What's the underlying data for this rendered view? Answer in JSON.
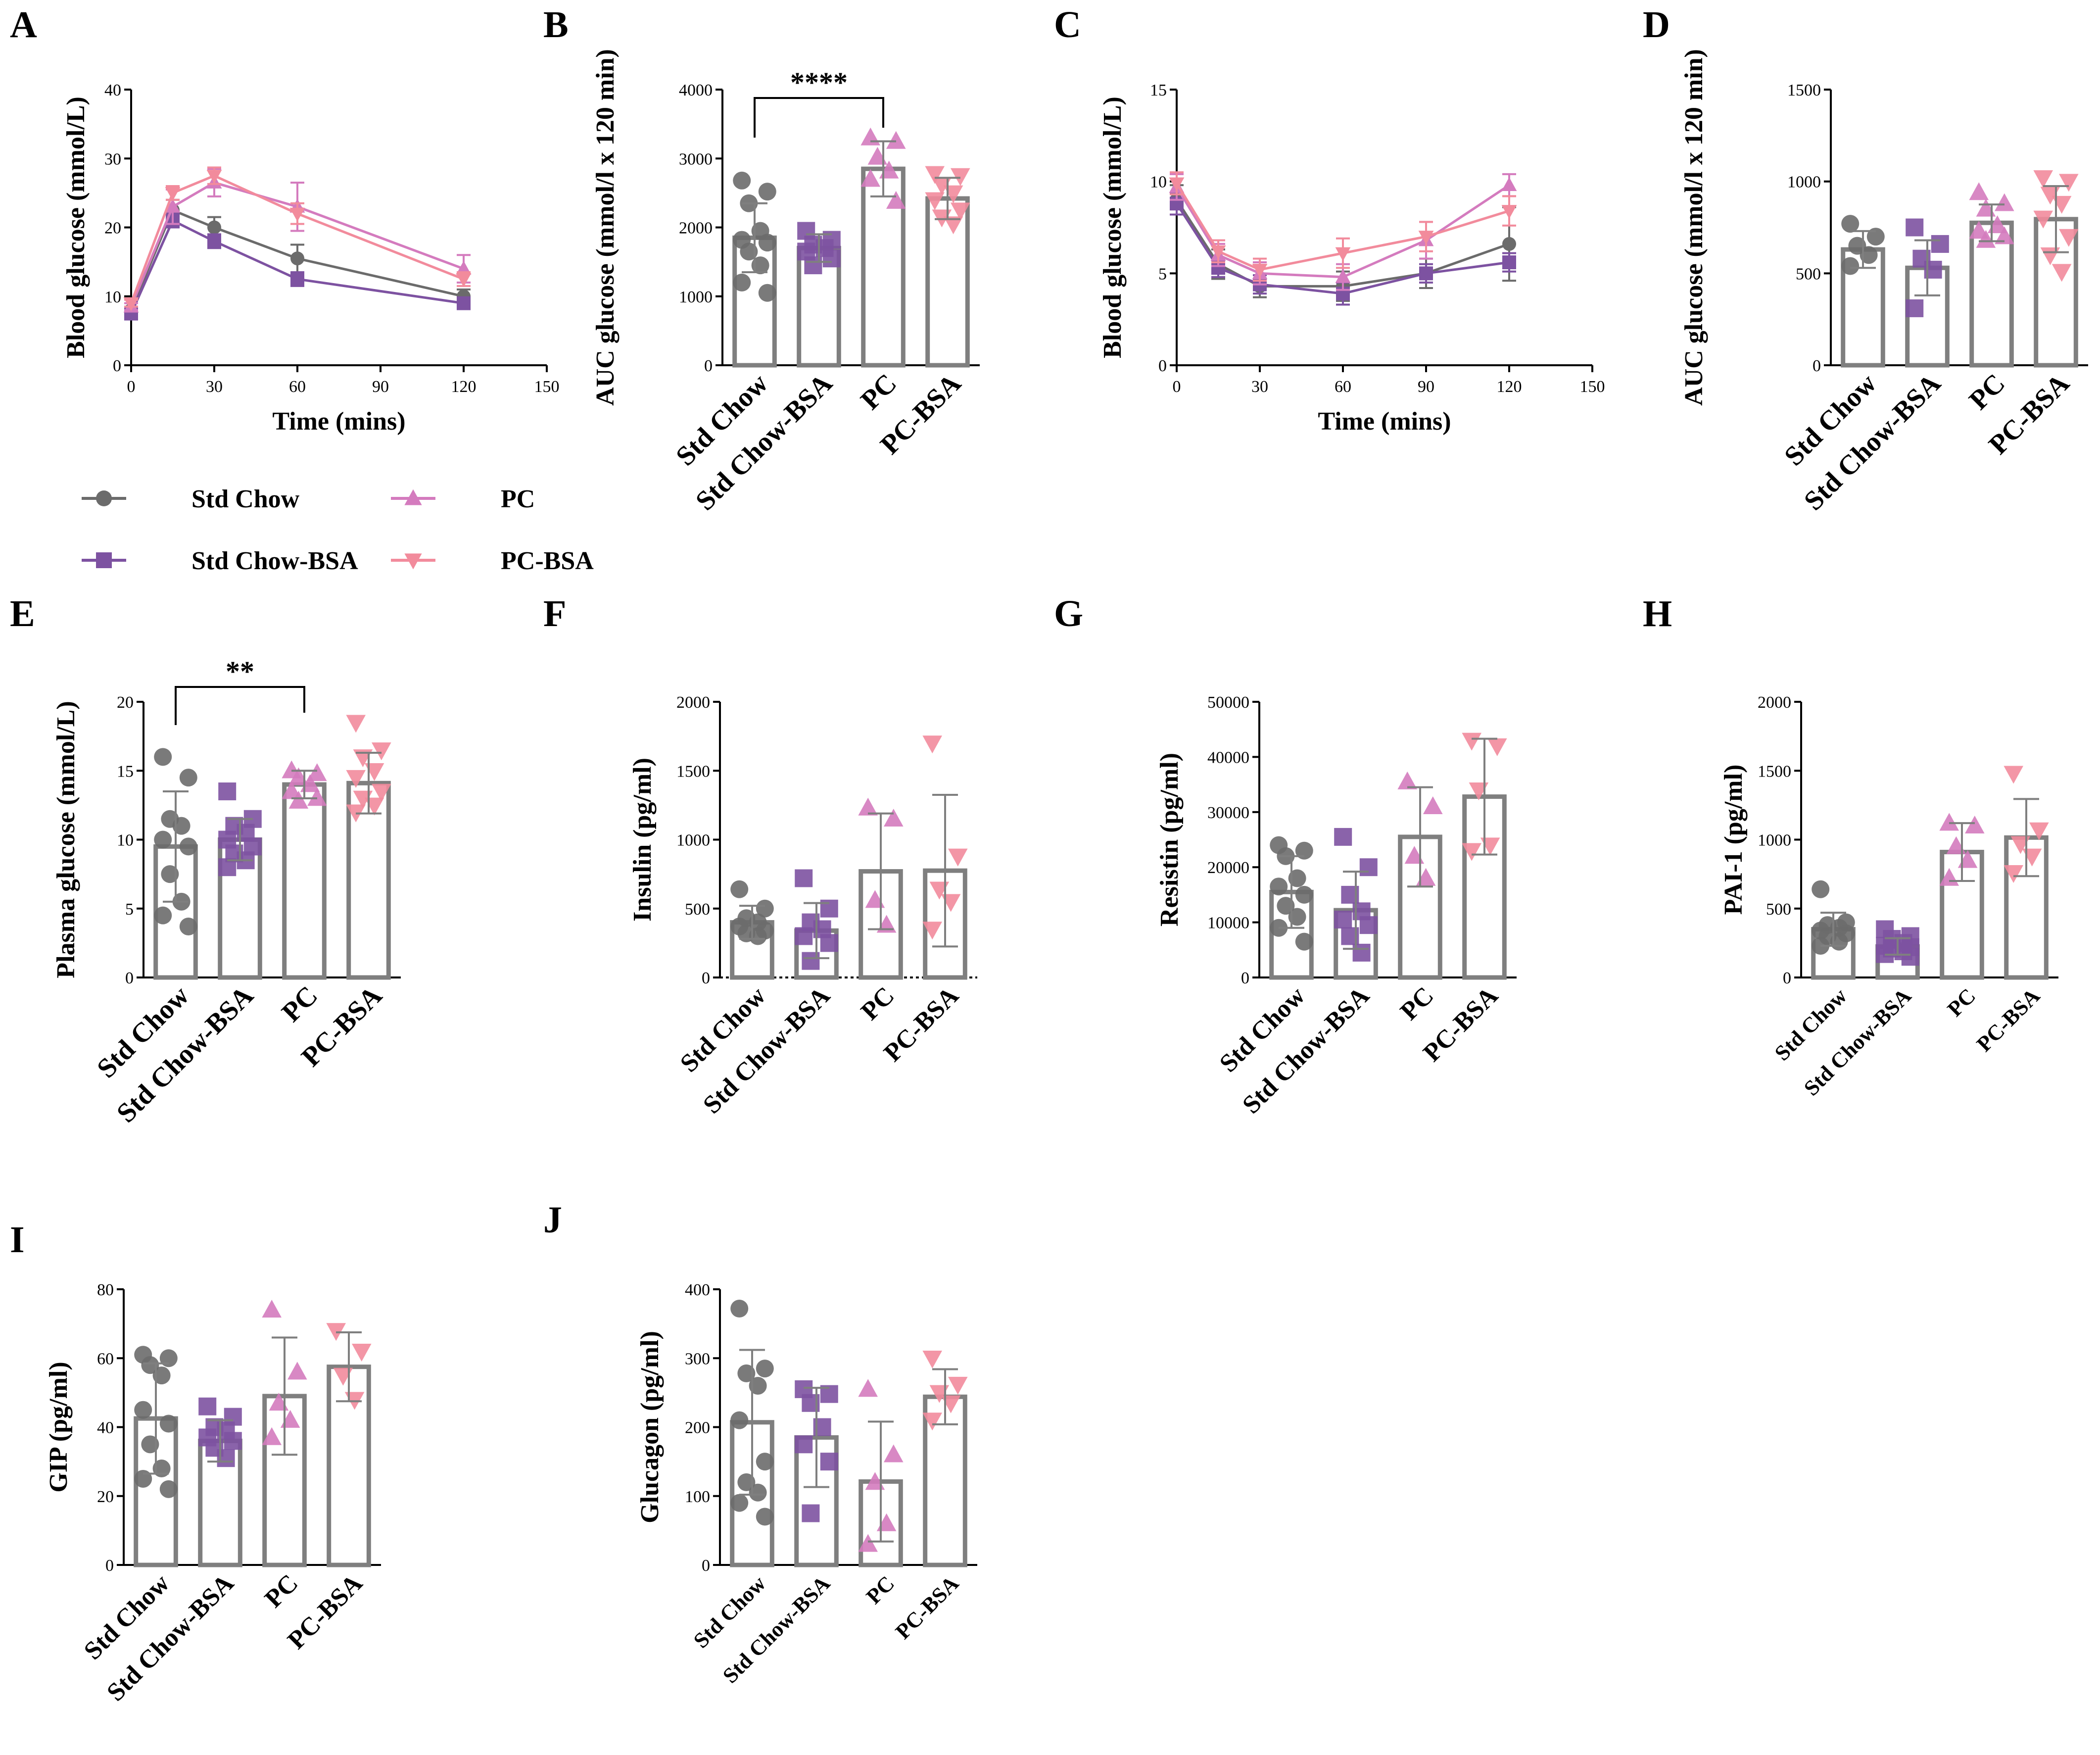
{
  "colors": {
    "std_chow": "#6b6b6b",
    "std_chow_bsa": "#7d52a1",
    "pc": "#d47bbe",
    "pc_bsa": "#f28b9c",
    "bar_outline": "#7f7f7f",
    "axis": "#000000"
  },
  "legend": {
    "items": [
      {
        "label": "Std Chow",
        "series": "std_chow",
        "marker": "circle"
      },
      {
        "label": "PC",
        "series": "pc",
        "marker": "triangle-up"
      },
      {
        "label": "Std Chow-BSA",
        "series": "std_chow_bsa",
        "marker": "square"
      },
      {
        "label": "PC-BSA",
        "series": "pc_bsa",
        "marker": "triangle-down"
      }
    ]
  },
  "chart_data": [
    {
      "panel": "A",
      "type": "line",
      "xlabel": "Time (mins)",
      "ylabel": "Blood glucose (mmol/L)",
      "xlim": [
        0,
        150
      ],
      "xticks": [
        0,
        30,
        60,
        90,
        120,
        150
      ],
      "ylim": [
        0,
        40
      ],
      "yticks": [
        0,
        10,
        20,
        30,
        40
      ],
      "x": [
        0,
        15,
        30,
        60,
        120
      ],
      "series": [
        {
          "name": "Std Chow",
          "key": "std_chow",
          "marker": "circle",
          "values": [
            8,
            22.5,
            20,
            15.5,
            10
          ],
          "err": [
            0.5,
            1.5,
            1.5,
            2,
            1
          ]
        },
        {
          "name": "Std Chow-BSA",
          "key": "std_chow_bsa",
          "marker": "square",
          "values": [
            7.5,
            21,
            18,
            12.5,
            9
          ],
          "err": [
            0.5,
            1,
            1,
            1,
            0.8
          ]
        },
        {
          "name": "PC",
          "key": "pc",
          "marker": "triangle-up",
          "values": [
            8.5,
            23,
            26.5,
            23,
            14
          ],
          "err": [
            0.5,
            2.5,
            2,
            3.5,
            2
          ]
        },
        {
          "name": "PC-BSA",
          "key": "pc_bsa",
          "marker": "triangle-down",
          "values": [
            9,
            25,
            27.5,
            22,
            12.5
          ],
          "err": [
            0.5,
            1,
            1.2,
            1.5,
            1
          ]
        }
      ]
    },
    {
      "panel": "B",
      "type": "bar",
      "ylabel": "AUC glucose (mmol/l x 120 min)",
      "ylim": [
        0,
        4000
      ],
      "yticks": [
        0,
        1000,
        2000,
        3000,
        4000
      ],
      "categories": [
        "Std Chow",
        "Std Chow-BSA",
        "PC",
        "PC-BSA"
      ],
      "values": [
        1850,
        1700,
        2850,
        2420
      ],
      "err": [
        500,
        200,
        400,
        300
      ],
      "points": [
        [
          2680,
          2520,
          2350,
          1950,
          1820,
          1780,
          1650,
          1450,
          1200,
          1050
        ],
        [
          1950,
          1820,
          1750,
          1700,
          1650,
          1550,
          1450
        ],
        [
          3300,
          3250,
          3020,
          2820,
          2700,
          2380
        ],
        [
          2780,
          2750,
          2620,
          2500,
          2400,
          2250,
          2150,
          2050
        ]
      ],
      "significance": {
        "from": 0,
        "to": 2,
        "label": "****"
      }
    },
    {
      "panel": "C",
      "type": "line",
      "xlabel": "Time (mins)",
      "ylabel": "Blood glucose (mmol/L)",
      "xlim": [
        0,
        150
      ],
      "xticks": [
        0,
        30,
        60,
        90,
        120,
        150
      ],
      "ylim": [
        0,
        15
      ],
      "yticks": [
        0,
        5,
        10,
        15
      ],
      "x": [
        0,
        15,
        30,
        60,
        90,
        120
      ],
      "series": [
        {
          "name": "Std Chow",
          "key": "std_chow",
          "marker": "circle",
          "values": [
            9,
            5.5,
            4.3,
            4.3,
            5,
            6.6
          ],
          "err": [
            0.8,
            0.8,
            0.6,
            0.8,
            0.8,
            2
          ]
        },
        {
          "name": "Std Chow-BSA",
          "key": "std_chow_bsa",
          "marker": "square",
          "values": [
            8.8,
            5.3,
            4.4,
            3.9,
            5,
            5.6
          ],
          "err": [
            0.6,
            0.5,
            0.5,
            0.6,
            0.5,
            0.5
          ]
        },
        {
          "name": "PC",
          "key": "pc",
          "marker": "triangle-up",
          "values": [
            9.7,
            6,
            5,
            4.8,
            6.8,
            9.8
          ],
          "err": [
            0.7,
            0.6,
            0.6,
            0.7,
            1,
            0.6
          ]
        },
        {
          "name": "PC-BSA",
          "key": "pc_bsa",
          "marker": "triangle-down",
          "values": [
            9.9,
            6.2,
            5.2,
            6.1,
            7,
            8.4
          ],
          "err": [
            0.6,
            0.6,
            0.6,
            0.8,
            0.8,
            0.8
          ]
        }
      ]
    },
    {
      "panel": "D",
      "type": "bar",
      "ylabel": "AUC glucose (mmol/l x 120 min)",
      "ylim": [
        0,
        1500
      ],
      "yticks": [
        0,
        500,
        1000,
        1500
      ],
      "categories": [
        "Std Chow",
        "Std Chow-BSA",
        "PC",
        "PC-BSA"
      ],
      "values": [
        630,
        530,
        775,
        795
      ],
      "err": [
        100,
        150,
        100,
        180
      ],
      "points": [
        [
          770,
          700,
          650,
          600,
          540
        ],
        [
          750,
          660,
          580,
          520,
          310
        ],
        [
          940,
          880,
          850,
          760,
          730,
          700,
          680
        ],
        [
          1020,
          1000,
          930,
          880,
          800,
          700,
          600,
          510
        ]
      ]
    },
    {
      "panel": "E",
      "type": "bar",
      "ylabel": "Plasma glucose (mmol/L)",
      "ylim": [
        0,
        20
      ],
      "yticks": [
        0,
        5,
        10,
        15,
        20
      ],
      "categories": [
        "Std Chow",
        "Std Chow-BSA",
        "PC",
        "PC-BSA"
      ],
      "values": [
        9.5,
        10,
        14,
        14.1
      ],
      "err": [
        4,
        1.5,
        1,
        2.2
      ],
      "points": [
        [
          16,
          14.5,
          11.5,
          11,
          10,
          9.5,
          7.5,
          5.5,
          4.5,
          3.7
        ],
        [
          13.5,
          11.5,
          11,
          10.5,
          10,
          9.5,
          9,
          8.5,
          8
        ],
        [
          15,
          14.8,
          14.5,
          14,
          13.5,
          13,
          12.8
        ],
        [
          18.5,
          16.5,
          16,
          15,
          14.5,
          13.5,
          13,
          12.5,
          12
        ]
      ],
      "significance": {
        "from": 0,
        "to": 2,
        "label": "**"
      }
    },
    {
      "panel": "F",
      "type": "bar",
      "ylabel": "Insulin (pg/ml)",
      "ylim": [
        0,
        2000
      ],
      "yticks": [
        0,
        500,
        1000,
        1500,
        2000
      ],
      "categories": [
        "Std Chow",
        "Std Chow-BSA",
        "PC",
        "PC-BSA"
      ],
      "values": [
        400,
        340,
        770,
        775
      ],
      "err": [
        120,
        200,
        420,
        550
      ],
      "points": [
        [
          640,
          500,
          430,
          400,
          370,
          340,
          320,
          300
        ],
        [
          720,
          500,
          400,
          350,
          300,
          250,
          120
        ],
        [
          1230,
          1150,
          560,
          380
        ],
        [
          1700,
          880,
          640,
          550,
          350
        ]
      ]
    },
    {
      "panel": "G",
      "type": "bar",
      "ylabel": "Resistin (pg/ml)",
      "ylim": [
        0,
        50000
      ],
      "yticks": [
        0,
        10000,
        20000,
        30000,
        40000,
        50000
      ],
      "categories": [
        "Std Chow",
        "Std Chow-BSA",
        "PC",
        "PC-BSA"
      ],
      "values": [
        15500,
        12200,
        25500,
        32800
      ],
      "err": [
        6500,
        7000,
        9000,
        10500
      ],
      "points": [
        [
          24000,
          23000,
          22000,
          18000,
          16500,
          15000,
          13000,
          11000,
          9000,
          6500
        ],
        [
          25500,
          20000,
          15000,
          12000,
          10500,
          9500,
          7500,
          4500
        ],
        [
          35500,
          31000,
          22000,
          18000
        ],
        [
          43000,
          42000,
          34000,
          24000,
          23000
        ]
      ]
    },
    {
      "panel": "H",
      "type": "bar",
      "ylabel": "PAI-1 (pg/ml)",
      "ylim": [
        0,
        2000
      ],
      "yticks": [
        0,
        500,
        1000,
        1500,
        2000
      ],
      "categories": [
        "Std Chow",
        "Std Chow-BSA",
        "PC",
        "PC-BSA"
      ],
      "values": [
        350,
        225,
        910,
        1015
      ],
      "err": [
        120,
        60,
        210,
        280
      ],
      "points": [
        [
          640,
          400,
          380,
          360,
          340,
          320,
          300,
          260,
          230
        ],
        [
          350,
          300,
          280,
          250,
          230,
          220,
          210,
          190,
          170,
          150
        ],
        [
          1120,
          1100,
          950,
          850,
          720
        ],
        [
          1480,
          1070,
          970,
          880,
          760
        ]
      ]
    },
    {
      "panel": "I",
      "type": "bar",
      "ylabel": "GIP (pg/ml)",
      "ylim": [
        0,
        80
      ],
      "yticks": [
        0,
        20,
        40,
        60,
        80
      ],
      "categories": [
        "Std Chow",
        "Std Chow-BSA",
        "PC",
        "PC-BSA"
      ],
      "values": [
        42.5,
        36,
        49,
        57.5
      ],
      "err": [
        16,
        6,
        17,
        10
      ],
      "points": [
        [
          61,
          60,
          58,
          55,
          45,
          41,
          35,
          28,
          25,
          22
        ],
        [
          46,
          43,
          40,
          39,
          37,
          36,
          34,
          31
        ],
        [
          74,
          56,
          47,
          42,
          37
        ],
        [
          68,
          62,
          55,
          48
        ]
      ]
    },
    {
      "panel": "J",
      "type": "bar",
      "ylabel": "Glucagon (pg/ml)",
      "ylim": [
        0,
        400
      ],
      "yticks": [
        0,
        100,
        200,
        300,
        400
      ],
      "categories": [
        "Std Chow",
        "Std Chow-BSA",
        "PC",
        "PC-BSA"
      ],
      "values": [
        207,
        185,
        121,
        244
      ],
      "err": [
        105,
        72,
        87,
        40
      ],
      "points": [
        [
          372,
          285,
          278,
          260,
          210,
          150,
          120,
          105,
          90,
          70
        ],
        [
          255,
          248,
          235,
          200,
          175,
          150,
          75
        ],
        [
          255,
          160,
          120,
          60,
          30
        ],
        [
          300,
          262,
          250,
          235,
          210
        ]
      ]
    }
  ]
}
